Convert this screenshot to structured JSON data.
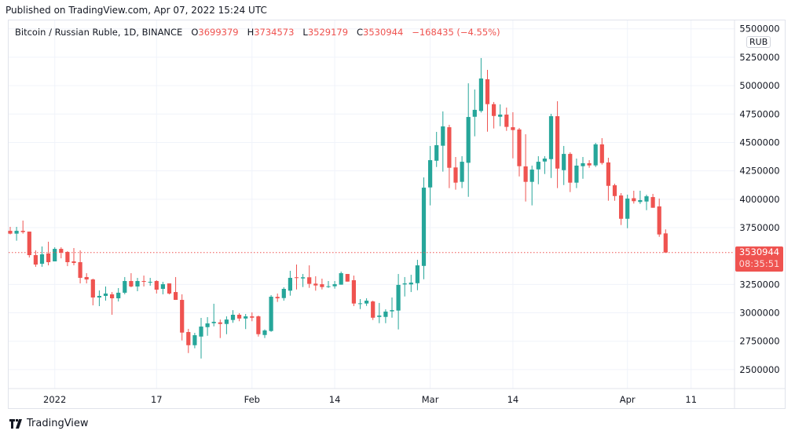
{
  "published": "Published on TradingView.com, Apr 07, 2022 15:24 UTC",
  "legend": {
    "symbol": "Bitcoin / Russian Ruble, 1D, BINANCE",
    "o_label": "O",
    "o": "3699379",
    "h_label": "H",
    "h": "3734573",
    "l_label": "L",
    "l": "3529179",
    "c_label": "C",
    "c": "3530944",
    "change": "−168435 (−4.55%)"
  },
  "currency": "RUB",
  "last_price": {
    "value": "3530944",
    "countdown": "08:35:51",
    "price": 3530944
  },
  "footer": {
    "brand": "TradingView"
  },
  "colors": {
    "up": "#26a69a",
    "down": "#ef5350",
    "grid": "#f0f3fa",
    "text": "#131722"
  },
  "chart_data": {
    "type": "candlestick",
    "title": "Bitcoin / Russian Ruble, 1D, BINANCE",
    "ylabel": "RUB",
    "ylim": [
      2350000,
      5550000
    ],
    "grid": true,
    "y_ticks": [
      "5500000",
      "5250000",
      "5000000",
      "4750000",
      "4500000",
      "4250000",
      "4000000",
      "3750000",
      "3250000",
      "3000000",
      "2750000",
      "2500000"
    ],
    "y_tick_values": [
      5500000,
      5250000,
      5000000,
      4750000,
      4500000,
      4250000,
      4000000,
      3750000,
      3250000,
      3000000,
      2750000,
      2500000
    ],
    "x_ticks": [
      {
        "label": "2022",
        "index": 7
      },
      {
        "label": "17",
        "index": 23
      },
      {
        "label": "Feb",
        "index": 38
      },
      {
        "label": "14",
        "index": 51
      },
      {
        "label": "Mar",
        "index": 66
      },
      {
        "label": "14",
        "index": 79
      },
      {
        "label": "Apr",
        "index": 97
      },
      {
        "label": "11",
        "index": 107
      }
    ],
    "ohlc_unit": 1000,
    "ohlc": [
      [
        3722,
        3757,
        3690,
        3697
      ],
      [
        3697,
        3757,
        3635,
        3722
      ],
      [
        3722,
        3812,
        3697,
        3711
      ],
      [
        3715,
        3715,
        3487,
        3508
      ],
      [
        3508,
        3550,
        3405,
        3425
      ],
      [
        3432,
        3584,
        3405,
        3515
      ],
      [
        3522,
        3626,
        3418,
        3446
      ],
      [
        3453,
        3577,
        3453,
        3563
      ],
      [
        3563,
        3577,
        3480,
        3529
      ],
      [
        3536,
        3543,
        3411,
        3446
      ],
      [
        3453,
        3570,
        3418,
        3439
      ],
      [
        3446,
        3550,
        3259,
        3308
      ],
      [
        3315,
        3349,
        3259,
        3294
      ],
      [
        3294,
        3301,
        3066,
        3135
      ],
      [
        3135,
        3197,
        3059,
        3149
      ],
      [
        3149,
        3232,
        3107,
        3170
      ],
      [
        3163,
        3183,
        2983,
        3128
      ],
      [
        3128,
        3218,
        3100,
        3177
      ],
      [
        3177,
        3315,
        3163,
        3280
      ],
      [
        3280,
        3349,
        3225,
        3232
      ],
      [
        3232,
        3308,
        3190,
        3280
      ],
      [
        3280,
        3328,
        3232,
        3273
      ],
      [
        3266,
        3308,
        3239,
        3273
      ],
      [
        3280,
        3287,
        3170,
        3204
      ],
      [
        3211,
        3273,
        3163,
        3252
      ],
      [
        3259,
        3259,
        3163,
        3170
      ],
      [
        3183,
        3315,
        3114,
        3114
      ],
      [
        3114,
        3163,
        2757,
        2826
      ],
      [
        2831,
        2859,
        2646,
        2715
      ],
      [
        2715,
        2824,
        2688,
        2803
      ],
      [
        2791,
        2955,
        2598,
        2879
      ],
      [
        2874,
        2962,
        2798,
        2907
      ],
      [
        2909,
        3080,
        2881,
        2921
      ],
      [
        2916,
        2941,
        2778,
        2902
      ],
      [
        2902,
        2969,
        2812,
        2941
      ],
      [
        2937,
        3024,
        2912,
        2983
      ],
      [
        2983,
        2997,
        2926,
        2950
      ],
      [
        2950,
        2990,
        2857,
        2969
      ],
      [
        2969,
        3004,
        2926,
        2957
      ],
      [
        2969,
        2976,
        2791,
        2812
      ],
      [
        2805,
        2854,
        2778,
        2845
      ],
      [
        2840,
        3156,
        2833,
        3142
      ],
      [
        3140,
        3170,
        3096,
        3128
      ],
      [
        3130,
        3225,
        3107,
        3211
      ],
      [
        3195,
        3370,
        3151,
        3308
      ],
      [
        3313,
        3425,
        3206,
        3310
      ],
      [
        3303,
        3342,
        3227,
        3313
      ],
      [
        3313,
        3418,
        3220,
        3255
      ],
      [
        3257,
        3322,
        3195,
        3241
      ],
      [
        3252,
        3301,
        3206,
        3227
      ],
      [
        3230,
        3280,
        3220,
        3234
      ],
      [
        3234,
        3280,
        3213,
        3252
      ],
      [
        3248,
        3363,
        3248,
        3349
      ],
      [
        3342,
        3342,
        3275,
        3275
      ],
      [
        3287,
        3328,
        3059,
        3082
      ],
      [
        3082,
        3121,
        3033,
        3084
      ],
      [
        3082,
        3128,
        3061,
        3107
      ],
      [
        3100,
        3107,
        2937,
        2957
      ],
      [
        2964,
        3087,
        2909,
        2976
      ],
      [
        2964,
        3031,
        2909,
        3011
      ],
      [
        3013,
        3135,
        2957,
        3024
      ],
      [
        3020,
        3342,
        2854,
        3246
      ],
      [
        3250,
        3315,
        3144,
        3259
      ],
      [
        3250,
        3335,
        3183,
        3266
      ],
      [
        3261,
        3467,
        3199,
        3418
      ],
      [
        3413,
        4192,
        3296,
        4102
      ],
      [
        4104,
        4469,
        3946,
        4344
      ],
      [
        4339,
        4593,
        4284,
        4476
      ],
      [
        4471,
        4773,
        4243,
        4641
      ],
      [
        4634,
        4655,
        4098,
        4277
      ],
      [
        4280,
        4372,
        4084,
        4146
      ],
      [
        4153,
        4379,
        4098,
        4330
      ],
      [
        4321,
        5021,
        4021,
        4724
      ],
      [
        4726,
        4966,
        4554,
        4787
      ],
      [
        4777,
        5243,
        4763,
        5063
      ],
      [
        5056,
        5139,
        4595,
        4837
      ],
      [
        4837,
        4856,
        4623,
        4733
      ],
      [
        4726,
        4835,
        4643,
        4745
      ],
      [
        4745,
        4807,
        4602,
        4637
      ],
      [
        4634,
        4766,
        4360,
        4609
      ],
      [
        4614,
        4628,
        4201,
        4291
      ],
      [
        4289,
        4572,
        3980,
        4153
      ],
      [
        4153,
        4296,
        3946,
        4261
      ],
      [
        4263,
        4379,
        4132,
        4330
      ],
      [
        4332,
        4379,
        4222,
        4358
      ],
      [
        4353,
        4752,
        4187,
        4731
      ],
      [
        4731,
        4863,
        4098,
        4270
      ],
      [
        4256,
        4469,
        4125,
        4399
      ],
      [
        4399,
        4413,
        4063,
        4146
      ],
      [
        4146,
        4358,
        4098,
        4296
      ],
      [
        4291,
        4372,
        4180,
        4317
      ],
      [
        4317,
        4344,
        4277,
        4298
      ],
      [
        4298,
        4496,
        4284,
        4483
      ],
      [
        4483,
        4538,
        4305,
        4319
      ],
      [
        4324,
        4365,
        3987,
        4118
      ],
      [
        4123,
        4137,
        3987,
        4028
      ],
      [
        4033,
        4054,
        3773,
        3828
      ],
      [
        3828,
        4040,
        3745,
        4006
      ],
      [
        4009,
        4075,
        3962,
        3983
      ],
      [
        3976,
        4075,
        3959,
        3992
      ],
      [
        3980,
        4040,
        3904,
        4026
      ],
      [
        4019,
        4047,
        3925,
        3925
      ],
      [
        3937,
        4006,
        3669,
        3690
      ],
      [
        3699.379,
        3734.573,
        3529.179,
        3530.944
      ]
    ]
  }
}
